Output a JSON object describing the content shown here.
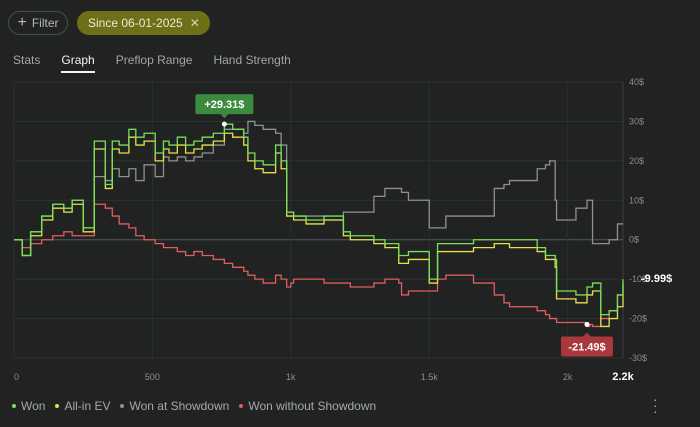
{
  "filter": {
    "label": "Filter",
    "icon": "plus-icon"
  },
  "date_chip": {
    "label": "Since 06-01-2025",
    "icon": "close-icon"
  },
  "tabs": [
    {
      "label": "Stats",
      "active": false
    },
    {
      "label": "Graph",
      "active": true
    },
    {
      "label": "Preflop Range",
      "active": false
    },
    {
      "label": "Hand Strength",
      "active": false
    }
  ],
  "colors": {
    "won": "#79e05a",
    "allin": "#e7e04a",
    "showdown": "#8f9190",
    "noshow": "#e25d5d",
    "badge_green": "#3b8a3e",
    "badge_red": "#a9383c",
    "bg": "#202322"
  },
  "menu_icon": "more-vertical-icon",
  "chart_data": {
    "type": "line",
    "xlabel": "",
    "ylabel": "",
    "xlim": [
      0,
      2200
    ],
    "ylim": [
      -30,
      40
    ],
    "x_ticks": [
      0,
      500,
      1000,
      1500,
      2000
    ],
    "x_tick_labels": [
      "0",
      "500",
      "1k",
      "1.5k",
      "2k"
    ],
    "x_end_label": "2.2k",
    "y_ticks": [
      40,
      30,
      20,
      10,
      0,
      -10,
      -20,
      -30
    ],
    "y_tick_labels": [
      "40$",
      "30$",
      "20$",
      "10$",
      "0$",
      "-10$",
      "-20$",
      "-30$"
    ],
    "grid": true,
    "legend_position": "bottom-left",
    "annotations": [
      {
        "text": "+29.31$",
        "x": 760,
        "y": 29.31,
        "style": "green"
      },
      {
        "text": "-9.99$",
        "x": 2200,
        "y": -9.99,
        "style": "plain"
      },
      {
        "text": "-21.49$",
        "x": 2070,
        "y": -21.49,
        "style": "red"
      }
    ],
    "series": [
      {
        "name": "Won",
        "color": "#79e05a",
        "x": [
          0,
          30,
          60,
          100,
          140,
          180,
          210,
          250,
          290,
          330,
          355,
          380,
          415,
          440,
          470,
          510,
          540,
          560,
          590,
          620,
          650,
          680,
          720,
          760,
          790,
          830,
          845,
          870,
          900,
          945,
          965,
          985,
          1000,
          1010,
          1055,
          1120,
          1190,
          1215,
          1300,
          1340,
          1390,
          1400,
          1425,
          1500,
          1530,
          1560,
          1660,
          1735,
          1770,
          1790,
          1890,
          1920,
          1935,
          1955,
          1960,
          2030,
          2070,
          2080,
          2090,
          2120,
          2150,
          2180,
          2200
        ],
        "y": [
          0,
          -4,
          2,
          6,
          9,
          8,
          10,
          3,
          25,
          14,
          25,
          24,
          28,
          26,
          27,
          22,
          25,
          24,
          26,
          24,
          25,
          26,
          27,
          29.3,
          28,
          26,
          22,
          20,
          19,
          24,
          20,
          7,
          7,
          6,
          5,
          6,
          2,
          1,
          0,
          -1,
          -4,
          -4,
          -3,
          -10,
          -1,
          -1,
          0,
          0,
          0,
          0,
          -2,
          -4,
          -4,
          -5,
          -13,
          -14,
          -12,
          -12,
          -11,
          -19,
          -18,
          -14,
          -10
        ]
      },
      {
        "name": "All-in EV",
        "color": "#e7e04a",
        "x": [
          0,
          30,
          60,
          100,
          140,
          180,
          210,
          250,
          290,
          330,
          355,
          380,
          415,
          440,
          470,
          510,
          540,
          560,
          590,
          620,
          650,
          680,
          720,
          760,
          790,
          830,
          845,
          870,
          900,
          945,
          965,
          985,
          1000,
          1010,
          1055,
          1120,
          1190,
          1215,
          1300,
          1340,
          1390,
          1400,
          1425,
          1500,
          1530,
          1560,
          1660,
          1735,
          1770,
          1790,
          1890,
          1920,
          1935,
          1955,
          1960,
          2030,
          2070,
          2080,
          2090,
          2120,
          2150,
          2180,
          2200
        ],
        "y": [
          0,
          -4,
          1,
          5,
          8,
          7,
          9,
          2,
          23,
          13,
          23,
          22,
          26,
          24,
          25,
          20,
          23,
          22,
          24,
          22,
          23,
          24,
          25,
          27,
          26,
          24,
          20,
          18,
          17,
          22,
          18,
          6,
          6,
          5,
          4,
          5,
          1,
          0,
          -1,
          -2,
          -6,
          -6,
          -5,
          -11,
          -3,
          -3,
          -2,
          -1,
          -1,
          -2,
          -3,
          -5,
          -5,
          -7,
          -15,
          -16,
          -14,
          -14,
          -13,
          -22,
          -20,
          -17,
          -11
        ]
      },
      {
        "name": "Won at Showdown",
        "color": "#8f9190",
        "x": [
          0,
          30,
          60,
          100,
          140,
          180,
          210,
          250,
          290,
          330,
          355,
          380,
          415,
          440,
          470,
          510,
          540,
          560,
          590,
          620,
          650,
          680,
          720,
          760,
          790,
          830,
          845,
          870,
          900,
          945,
          965,
          985,
          1000,
          1010,
          1055,
          1120,
          1190,
          1215,
          1300,
          1340,
          1390,
          1400,
          1425,
          1500,
          1530,
          1560,
          1660,
          1735,
          1770,
          1790,
          1890,
          1920,
          1935,
          1955,
          1960,
          2030,
          2070,
          2080,
          2090,
          2120,
          2150,
          2180,
          2200
        ],
        "y": [
          0,
          -4,
          2,
          6,
          9,
          8,
          10,
          3,
          16,
          15,
          18,
          16,
          18,
          15,
          19,
          16,
          21,
          20,
          21,
          20,
          21,
          22,
          24,
          28,
          28,
          27,
          30,
          29,
          28,
          27,
          24,
          7,
          7,
          6,
          6,
          5,
          7,
          7,
          11,
          13,
          13,
          12,
          10,
          3,
          3,
          6,
          6,
          13,
          14,
          15,
          18,
          19,
          20,
          10,
          5,
          8,
          10,
          10,
          -1,
          -1,
          0,
          4,
          4
        ]
      },
      {
        "name": "Won without Showdown",
        "color": "#e25d5d",
        "x": [
          0,
          30,
          60,
          100,
          140,
          180,
          210,
          250,
          290,
          330,
          355,
          380,
          415,
          440,
          470,
          510,
          540,
          560,
          590,
          620,
          650,
          680,
          720,
          760,
          790,
          830,
          845,
          870,
          900,
          945,
          965,
          985,
          1000,
          1010,
          1055,
          1120,
          1190,
          1215,
          1300,
          1340,
          1390,
          1400,
          1425,
          1500,
          1530,
          1560,
          1660,
          1735,
          1770,
          1790,
          1890,
          1920,
          1935,
          1955,
          1960,
          2030,
          2070,
          2080,
          2090,
          2120,
          2150,
          2180,
          2200
        ],
        "y": [
          0,
          -2,
          -1,
          0,
          1,
          2,
          1,
          1,
          9,
          8,
          6,
          4,
          3,
          1,
          0,
          -1,
          -2,
          -2,
          -3,
          -4,
          -3,
          -4,
          -5,
          -6,
          -7,
          -8,
          -9,
          -10,
          -11,
          -9,
          -10,
          -12,
          -11,
          -10,
          -10,
          -11,
          -11,
          -12,
          -11,
          -10,
          -11,
          -14,
          -13,
          -13,
          -10,
          -9,
          -11,
          -14,
          -16,
          -17,
          -18,
          -19,
          -20,
          -20,
          -21,
          -21,
          -22,
          -21.5,
          -22,
          -20,
          -18,
          -14,
          -14
        ]
      }
    ]
  }
}
